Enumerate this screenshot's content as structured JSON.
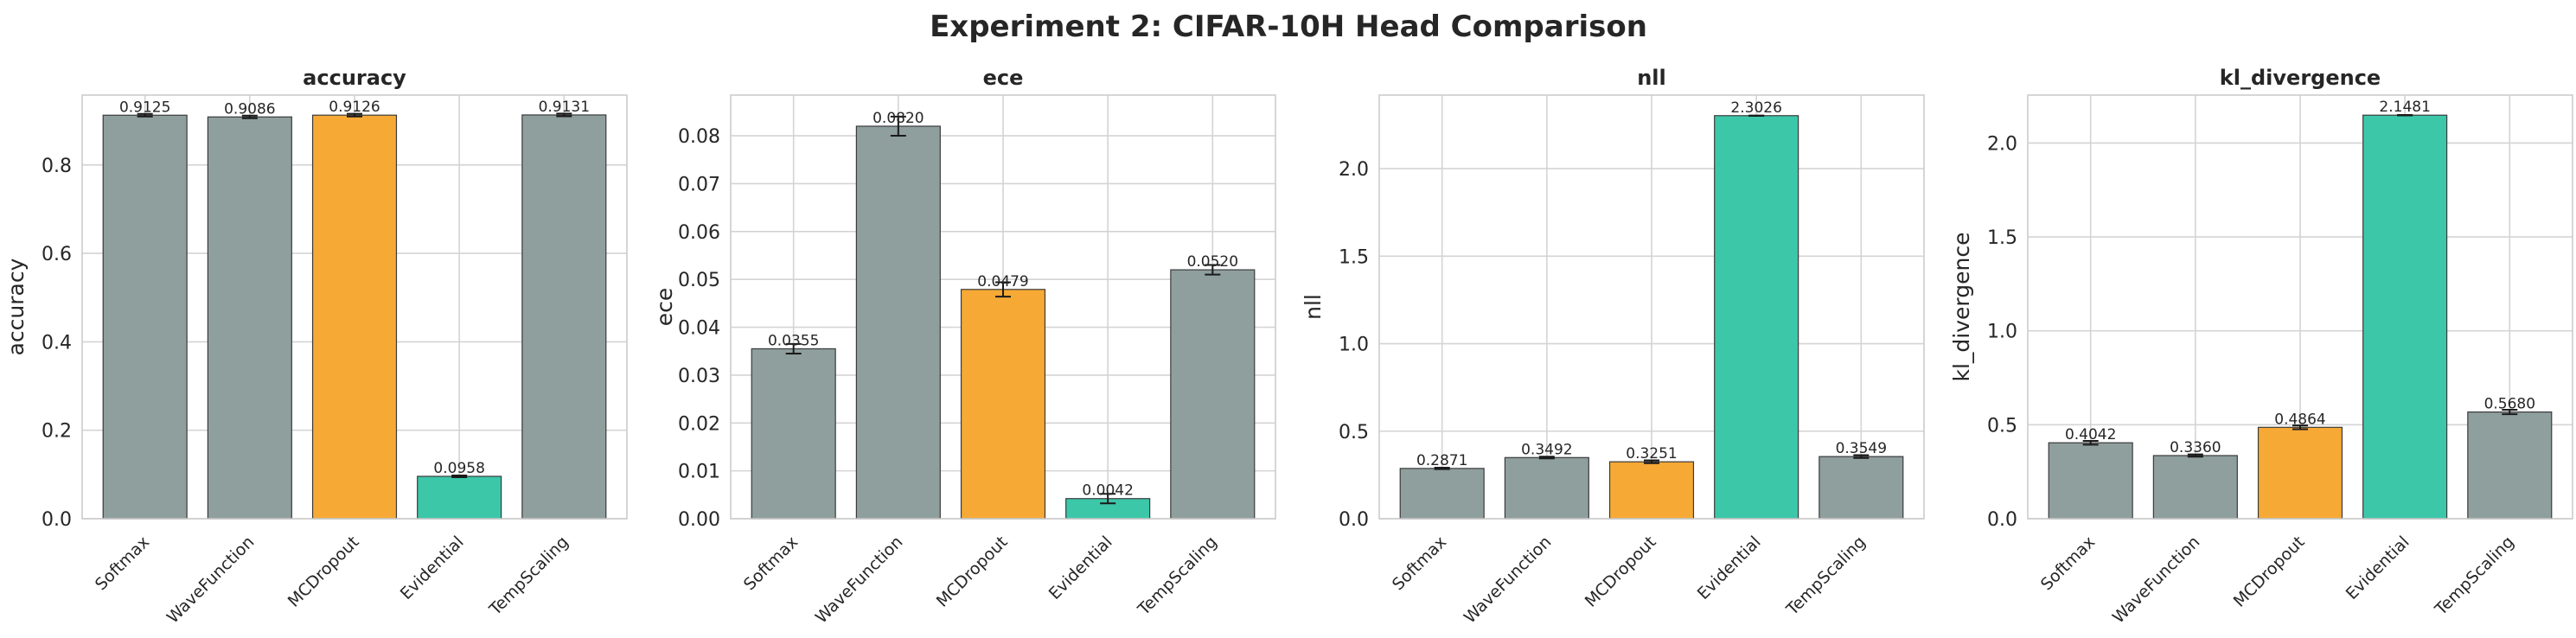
{
  "figure_title": "Experiment 2: CIFAR-10H Head Comparison",
  "colors": {
    "baseline": "#8f9f9d",
    "mcdropout": "#f6a935",
    "evidential": "#3cc7a9",
    "background": "#ffffff",
    "grid": "#d4d4d4"
  },
  "chart_data": [
    {
      "type": "bar",
      "title": "accuracy",
      "xlabel": "",
      "ylabel": "accuracy",
      "categories": [
        "Softmax",
        "WaveFunction",
        "MCDropout",
        "Evidential",
        "TempScaling"
      ],
      "values": [
        0.9125,
        0.9086,
        0.9126,
        0.0958,
        0.9131
      ],
      "value_labels": [
        "0.9125",
        "0.9086",
        "0.9126",
        "0.0958",
        "0.9131"
      ],
      "errors": [
        0.003,
        0.003,
        0.003,
        0.002,
        0.003
      ],
      "bar_colors": [
        "baseline",
        "baseline",
        "mcdropout",
        "evidential",
        "baseline"
      ],
      "ylim": [
        0,
        0.958
      ],
      "yticks": [
        0.0,
        0.2,
        0.4,
        0.6,
        0.8
      ],
      "ytick_labels": [
        "0.0",
        "0.2",
        "0.4",
        "0.6",
        "0.8"
      ],
      "grid": true
    },
    {
      "type": "bar",
      "title": "ece",
      "xlabel": "",
      "ylabel": "ece",
      "categories": [
        "Softmax",
        "WaveFunction",
        "MCDropout",
        "Evidential",
        "TempScaling"
      ],
      "values": [
        0.0355,
        0.082,
        0.0479,
        0.0042,
        0.052
      ],
      "value_labels": [
        "0.0355",
        "0.0820",
        "0.0479",
        "0.0042",
        "0.0520"
      ],
      "errors": [
        0.001,
        0.002,
        0.0015,
        0.001,
        0.001
      ],
      "bar_colors": [
        "baseline",
        "baseline",
        "mcdropout",
        "evidential",
        "baseline"
      ],
      "ylim": [
        0,
        0.0885
      ],
      "yticks": [
        0.0,
        0.01,
        0.02,
        0.03,
        0.04,
        0.05,
        0.06,
        0.07,
        0.08
      ],
      "ytick_labels": [
        "0.00",
        "0.01",
        "0.02",
        "0.03",
        "0.04",
        "0.05",
        "0.06",
        "0.07",
        "0.08"
      ],
      "grid": true
    },
    {
      "type": "bar",
      "title": "nll",
      "xlabel": "",
      "ylabel": "nll",
      "categories": [
        "Softmax",
        "WaveFunction",
        "MCDropout",
        "Evidential",
        "TempScaling"
      ],
      "values": [
        0.2871,
        0.3492,
        0.3251,
        2.3026,
        0.3549
      ],
      "value_labels": [
        "0.2871",
        "0.3492",
        "0.3251",
        "2.3026",
        "0.3549"
      ],
      "errors": [
        0.004,
        0.005,
        0.008,
        0.001,
        0.008
      ],
      "bar_colors": [
        "baseline",
        "baseline",
        "mcdropout",
        "evidential",
        "baseline"
      ],
      "ylim": [
        0,
        2.42
      ],
      "yticks": [
        0.0,
        0.5,
        1.0,
        1.5,
        2.0
      ],
      "ytick_labels": [
        "0.0",
        "0.5",
        "1.0",
        "1.5",
        "2.0"
      ],
      "grid": true
    },
    {
      "type": "bar",
      "title": "kl_divergence",
      "xlabel": "",
      "ylabel": "kl_divergence",
      "categories": [
        "Softmax",
        "WaveFunction",
        "MCDropout",
        "Evidential",
        "TempScaling"
      ],
      "values": [
        0.4042,
        0.336,
        0.4864,
        2.1481,
        0.568
      ],
      "value_labels": [
        "0.4042",
        "0.3360",
        "0.4864",
        "2.1481",
        "0.5680"
      ],
      "errors": [
        0.01,
        0.006,
        0.01,
        0.001,
        0.012
      ],
      "bar_colors": [
        "baseline",
        "baseline",
        "mcdropout",
        "evidential",
        "baseline"
      ],
      "ylim": [
        0,
        2.255
      ],
      "yticks": [
        0.0,
        0.5,
        1.0,
        1.5,
        2.0
      ],
      "ytick_labels": [
        "0.0",
        "0.5",
        "1.0",
        "1.5",
        "2.0"
      ],
      "grid": true
    }
  ]
}
